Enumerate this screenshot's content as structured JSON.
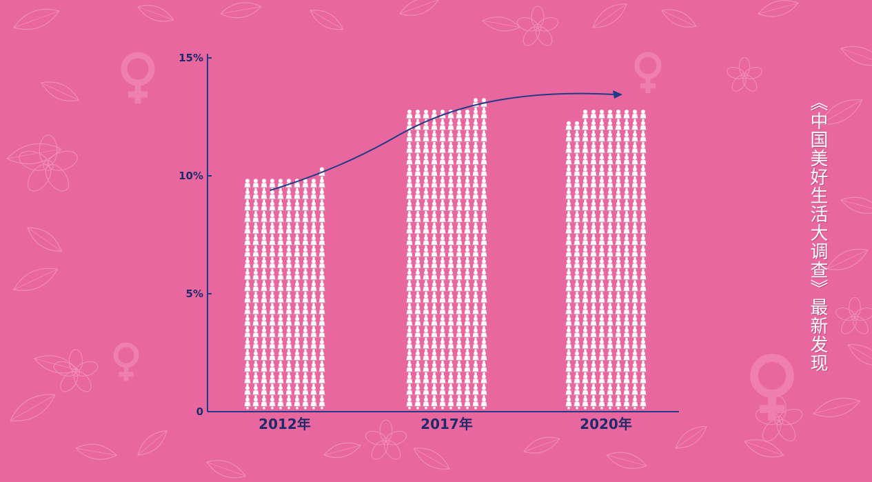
{
  "colors": {
    "background": "#e9679f",
    "axis": "#1f3a86",
    "label": "#1f2a6b",
    "icon": "#ffffff",
    "icon_shadow": "#b73a6a",
    "decor": "#f08cb9"
  },
  "side_title": "《中国美好生活大调查》最新发现",
  "chart_data": {
    "type": "bar",
    "categories": [
      "2012年",
      "2017年",
      "2020年"
    ],
    "values": [
      9.8,
      12.8,
      12.6
    ],
    "ylim": [
      0,
      15
    ],
    "yticks": [
      "0",
      "5%",
      "10%",
      "15%"
    ],
    "ytick_values": [
      0,
      5,
      10,
      15
    ],
    "title": "",
    "xlabel": "",
    "ylabel": "",
    "trend_arrow": true,
    "mark_style": "pictogram-woman-icons"
  }
}
